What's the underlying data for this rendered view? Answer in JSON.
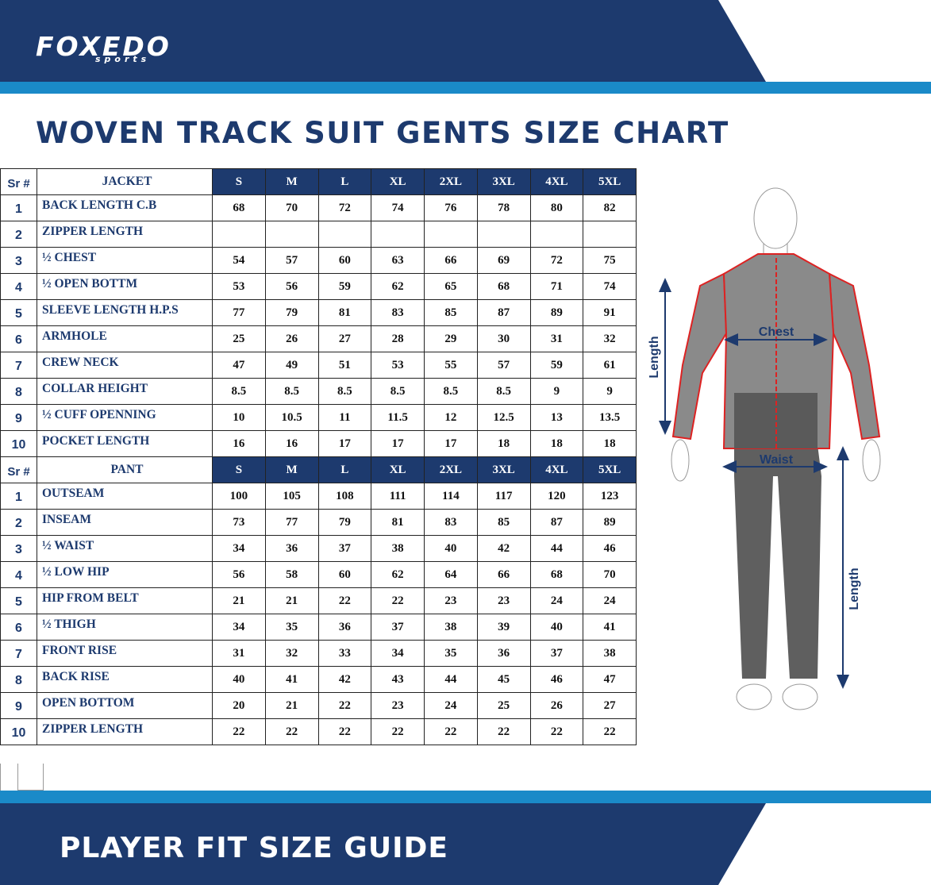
{
  "header": {
    "logo": {
      "name": "FOXEDO",
      "tagline": "sports"
    },
    "title": "WOVEN TRACK SUIT GENTS SIZE CHART"
  },
  "tables": [
    {
      "header": [
        "Sr #",
        "JACKET",
        "S",
        "M",
        "L",
        "XL",
        "2XL",
        "3XL",
        "4XL",
        "5XL"
      ],
      "rows": [
        {
          "sr": 1,
          "name": "BACK LENGTH C.B",
          "values": [
            68,
            70,
            72,
            74,
            76,
            78,
            80,
            82
          ]
        },
        {
          "sr": 2,
          "name": "ZIPPER LENGTH",
          "values": []
        },
        {
          "sr": 3,
          "name": "½ CHEST",
          "values": [
            54,
            57,
            60,
            63,
            66,
            69,
            72,
            75
          ]
        },
        {
          "sr": 4,
          "name": "½ OPEN BOTTM",
          "values": [
            53,
            56,
            59,
            62,
            65,
            68,
            71,
            74
          ]
        },
        {
          "sr": 5,
          "name": "SLEEVE LENGTH H.P.S",
          "values": [
            77,
            79,
            81,
            83,
            85,
            87,
            89,
            91
          ]
        },
        {
          "sr": 6,
          "name": "ARMHOLE",
          "values": [
            25,
            26,
            27,
            28,
            29,
            30,
            31,
            32
          ]
        },
        {
          "sr": 7,
          "name": "CREW NECK",
          "values": [
            47,
            49,
            51,
            53,
            55,
            57,
            59,
            61
          ]
        },
        {
          "sr": 8,
          "name": "COLLAR HEIGHT",
          "values": [
            8.5,
            8.5,
            8.5,
            8.5,
            8.5,
            8.5,
            9,
            9
          ]
        },
        {
          "sr": 9,
          "name": "½ CUFF OPENNING",
          "values": [
            10,
            10.5,
            11,
            11.5,
            12,
            12.5,
            13,
            13.5
          ]
        },
        {
          "sr": 10,
          "name": "POCKET LENGTH",
          "values": [
            16,
            16,
            17,
            17,
            17,
            18,
            18,
            18
          ]
        }
      ]
    },
    {
      "header": [
        "Sr #",
        "PANT",
        "S",
        "M",
        "L",
        "XL",
        "2XL",
        "3XL",
        "4XL",
        "5XL"
      ],
      "rows": [
        {
          "sr": 1,
          "name": "OUTSEAM",
          "values": [
            100,
            105,
            108,
            111,
            114,
            117,
            120,
            123
          ]
        },
        {
          "sr": 2,
          "name": "INSEAM",
          "values": [
            73,
            77,
            79,
            81,
            83,
            85,
            87,
            89
          ]
        },
        {
          "sr": 3,
          "name": "½ WAIST",
          "values": [
            34,
            36,
            37,
            38,
            40,
            42,
            44,
            46
          ]
        },
        {
          "sr": 4,
          "name": "½ LOW HIP",
          "values": [
            56,
            58,
            60,
            62,
            64,
            66,
            68,
            70
          ]
        },
        {
          "sr": 5,
          "name": "HIP FROM BELT",
          "values": [
            21,
            21,
            22,
            22,
            23,
            23,
            24,
            24
          ]
        },
        {
          "sr": 6,
          "name": "½ THIGH",
          "values": [
            34,
            35,
            36,
            37,
            38,
            39,
            40,
            41
          ]
        },
        {
          "sr": 7,
          "name": "FRONT RISE",
          "values": [
            31,
            32,
            33,
            34,
            35,
            36,
            37,
            38
          ]
        },
        {
          "sr": 8,
          "name": "BACK RISE",
          "values": [
            40,
            41,
            42,
            43,
            44,
            45,
            46,
            47
          ]
        },
        {
          "sr": 9,
          "name": "OPEN BOTTOM",
          "values": [
            20,
            21,
            22,
            23,
            24,
            25,
            26,
            27
          ]
        },
        {
          "sr": 10,
          "name": "ZIPPER LENGTH",
          "values": [
            22,
            22,
            22,
            22,
            22,
            22,
            22,
            22
          ]
        }
      ]
    }
  ],
  "figure": {
    "labels": [
      "Chest",
      "Waist",
      "Length",
      "Length"
    ]
  },
  "footer": {
    "title": "PLAYER FIT SIZE GUIDE"
  }
}
